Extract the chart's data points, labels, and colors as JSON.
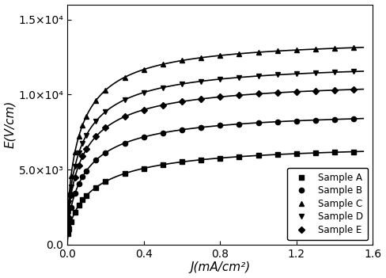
{
  "title": "",
  "xlabel": "J(mA/cm²)",
  "ylabel": "E(V/cm)",
  "xlim": [
    0,
    1.6
  ],
  "ylim": [
    0,
    16000
  ],
  "xticks": [
    0.0,
    0.4,
    0.8,
    1.2,
    1.6
  ],
  "yticks": [
    0.0,
    5000,
    10000,
    15000
  ],
  "ytick_labels": [
    "0.0",
    "5.0×10³",
    "1.0×10⁴",
    "1.5×10⁴"
  ],
  "samples": [
    {
      "name": "Sample A",
      "marker": "s",
      "E_scale": 6800,
      "alpha": 0.28,
      "beta": 0.55
    },
    {
      "name": "Sample B",
      "marker": "o",
      "E_scale": 9000,
      "alpha": 0.22,
      "beta": 0.52
    },
    {
      "name": "Sample C",
      "marker": "^",
      "E_scale": 13800,
      "alpha": 0.16,
      "beta": 0.5
    },
    {
      "name": "Sample D",
      "marker": "v",
      "E_scale": 12200,
      "alpha": 0.18,
      "beta": 0.5
    },
    {
      "name": "Sample E",
      "marker": "D",
      "E_scale": 11000,
      "alpha": 0.2,
      "beta": 0.5
    }
  ],
  "line_color": "#000000",
  "background_color": "#ffffff",
  "legend_loc": "lower right",
  "figsize": [
    4.88,
    3.51
  ],
  "dpi": 100,
  "n_markers": 15
}
